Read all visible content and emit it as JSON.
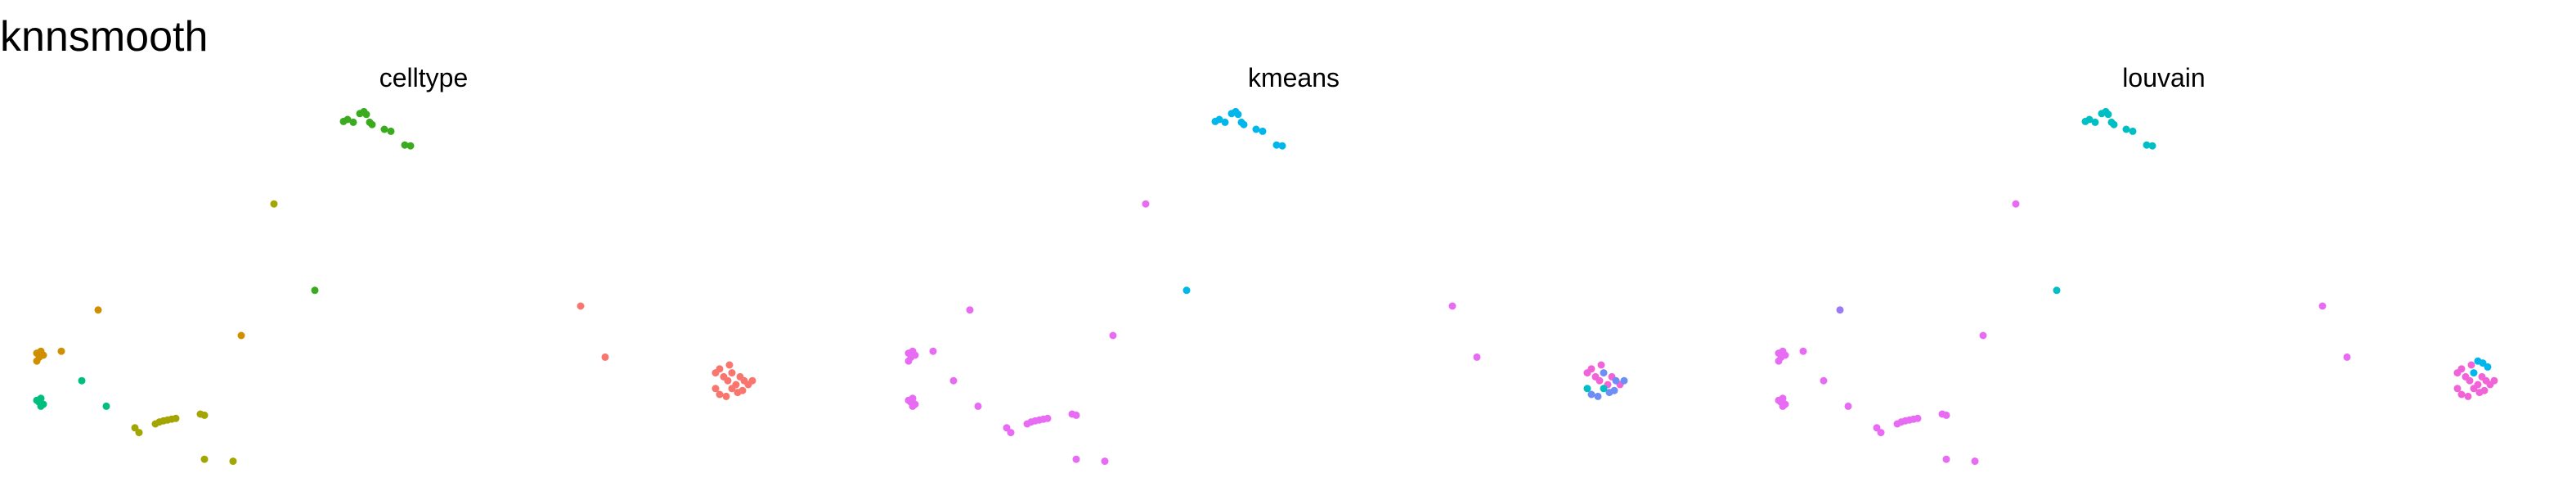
{
  "figure": {
    "title": "knnsmooth"
  },
  "palette": {
    "ct_green": "#3AAA1F",
    "ct_olive": "#A3A500",
    "ct_orange": "#CF8F00",
    "ct_teal": "#00BE80",
    "ct_red": "#F8766D",
    "cl_cyan": "#00B6EB",
    "cl_pink": "#E76BF3",
    "cl_blue": "#6F8EF5",
    "cl_lavender": "#9C7AF5",
    "cl_teal": "#00BFC4",
    "cl_magenta": "#F064D8"
  },
  "chart_data": [
    {
      "type": "scatter",
      "title": "celltype",
      "xlabel": "",
      "ylabel": "",
      "grid": false,
      "axes": false,
      "xlim": [
        0,
        1
      ],
      "ylim": [
        0,
        1
      ],
      "series": [
        {
          "color": "#3AAA1F",
          "x": [
            0.42,
            0.425,
            0.432,
            0.44,
            0.445,
            0.448,
            0.452,
            0.455,
            0.47,
            0.478,
            0.495,
            0.502,
            0.385
          ],
          "y": [
            0.92,
            0.925,
            0.918,
            0.94,
            0.945,
            0.938,
            0.918,
            0.912,
            0.9,
            0.895,
            0.86,
            0.858,
            0.49
          ]
        },
        {
          "color": "#A3A500",
          "x": [
            0.335,
            0.165,
            0.17,
            0.19,
            0.195,
            0.2,
            0.205,
            0.21,
            0.215,
            0.245,
            0.25,
            0.25,
            0.285
          ],
          "y": [
            0.71,
            0.14,
            0.128,
            0.15,
            0.155,
            0.158,
            0.16,
            0.162,
            0.164,
            0.175,
            0.172,
            0.06,
            0.055
          ]
        },
        {
          "color": "#CF8F00",
          "x": [
            0.045,
            0.048,
            0.05,
            0.053,
            0.045,
            0.075,
            0.12,
            0.295
          ],
          "y": [
            0.33,
            0.32,
            0.335,
            0.325,
            0.31,
            0.335,
            0.44,
            0.375
          ]
        },
        {
          "color": "#00BE80",
          "x": [
            0.045,
            0.048,
            0.05,
            0.053,
            0.05,
            0.1,
            0.13
          ],
          "y": [
            0.21,
            0.205,
            0.215,
            0.2,
            0.195,
            0.26,
            0.195
          ]
        },
        {
          "color": "#F8766D",
          "x": [
            0.71,
            0.74,
            0.875,
            0.88,
            0.885,
            0.89,
            0.895,
            0.9,
            0.905,
            0.91,
            0.915,
            0.92,
            0.88,
            0.888,
            0.895,
            0.902,
            0.875,
            0.908,
            0.892
          ],
          "y": [
            0.45,
            0.32,
            0.28,
            0.29,
            0.27,
            0.26,
            0.28,
            0.25,
            0.27,
            0.26,
            0.25,
            0.26,
            0.225,
            0.22,
            0.24,
            0.23,
            0.24,
            0.235,
            0.3
          ]
        }
      ]
    },
    {
      "type": "scatter",
      "title": "kmeans",
      "xlabel": "",
      "ylabel": "",
      "grid": false,
      "axes": false,
      "xlim": [
        0,
        1
      ],
      "ylim": [
        0,
        1
      ],
      "series": [
        {
          "color": "#00B6EB",
          "x": [
            0.42,
            0.425,
            0.432,
            0.44,
            0.445,
            0.448,
            0.452,
            0.455,
            0.47,
            0.478,
            0.495,
            0.502,
            0.385
          ],
          "y": [
            0.92,
            0.925,
            0.918,
            0.94,
            0.945,
            0.938,
            0.918,
            0.912,
            0.9,
            0.895,
            0.86,
            0.858,
            0.49
          ]
        },
        {
          "color": "#E76BF3",
          "x": [
            0.045,
            0.048,
            0.05,
            0.053,
            0.045,
            0.075,
            0.045,
            0.048,
            0.05,
            0.053,
            0.05,
            0.1,
            0.12,
            0.13,
            0.165,
            0.17,
            0.19,
            0.195,
            0.2,
            0.205,
            0.21,
            0.215,
            0.245,
            0.25,
            0.25,
            0.285,
            0.295,
            0.335,
            0.71,
            0.74
          ],
          "y": [
            0.33,
            0.32,
            0.335,
            0.325,
            0.31,
            0.335,
            0.21,
            0.205,
            0.215,
            0.2,
            0.195,
            0.26,
            0.44,
            0.195,
            0.14,
            0.128,
            0.15,
            0.155,
            0.158,
            0.16,
            0.162,
            0.164,
            0.175,
            0.172,
            0.06,
            0.055,
            0.375,
            0.71,
            0.45,
            0.32
          ]
        },
        {
          "color": "#F064D8",
          "x": [
            0.875,
            0.88,
            0.885,
            0.89,
            0.9,
            0.905,
            0.915,
            0.892
          ],
          "y": [
            0.28,
            0.29,
            0.27,
            0.26,
            0.25,
            0.27,
            0.25,
            0.3
          ]
        },
        {
          "color": "#6F8EF5",
          "x": [
            0.895,
            0.91,
            0.92,
            0.88,
            0.888,
            0.902,
            0.908
          ],
          "y": [
            0.28,
            0.26,
            0.26,
            0.225,
            0.22,
            0.23,
            0.235
          ]
        },
        {
          "color": "#00BFC4",
          "x": [
            0.895,
            0.875
          ],
          "y": [
            0.24,
            0.24
          ]
        }
      ]
    },
    {
      "type": "scatter",
      "title": "louvain",
      "xlabel": "",
      "ylabel": "",
      "grid": false,
      "axes": false,
      "xlim": [
        0,
        1
      ],
      "ylim": [
        0,
        1
      ],
      "series": [
        {
          "color": "#00BFC4",
          "x": [
            0.42,
            0.425,
            0.432,
            0.44,
            0.445,
            0.448,
            0.452,
            0.455,
            0.47,
            0.478,
            0.495,
            0.502,
            0.385
          ],
          "y": [
            0.92,
            0.925,
            0.918,
            0.94,
            0.945,
            0.938,
            0.918,
            0.912,
            0.9,
            0.895,
            0.86,
            0.858,
            0.49
          ]
        },
        {
          "color": "#E76BF3",
          "x": [
            0.045,
            0.048,
            0.05,
            0.053,
            0.045,
            0.075,
            0.045,
            0.048,
            0.05,
            0.053,
            0.05,
            0.1,
            0.13,
            0.165,
            0.17,
            0.19,
            0.195,
            0.2,
            0.205,
            0.21,
            0.215,
            0.245,
            0.25,
            0.25,
            0.285,
            0.295,
            0.335,
            0.71,
            0.74
          ],
          "y": [
            0.33,
            0.32,
            0.335,
            0.325,
            0.31,
            0.335,
            0.21,
            0.205,
            0.215,
            0.2,
            0.195,
            0.26,
            0.195,
            0.14,
            0.128,
            0.15,
            0.155,
            0.158,
            0.16,
            0.162,
            0.164,
            0.175,
            0.172,
            0.06,
            0.055,
            0.375,
            0.71,
            0.45,
            0.32
          ]
        },
        {
          "color": "#9C7AF5",
          "x": [
            0.12
          ],
          "y": [
            0.44
          ]
        },
        {
          "color": "#F064D8",
          "x": [
            0.875,
            0.88,
            0.885,
            0.89,
            0.9,
            0.905,
            0.91,
            0.915,
            0.92,
            0.88,
            0.888,
            0.895,
            0.902,
            0.875,
            0.908,
            0.892
          ],
          "y": [
            0.28,
            0.29,
            0.27,
            0.26,
            0.25,
            0.27,
            0.26,
            0.25,
            0.26,
            0.225,
            0.22,
            0.24,
            0.23,
            0.24,
            0.235,
            0.3
          ]
        },
        {
          "color": "#00B6EB",
          "x": [
            0.895,
            0.9,
            0.906,
            0.912
          ],
          "y": [
            0.28,
            0.31,
            0.305,
            0.295
          ]
        }
      ]
    }
  ]
}
